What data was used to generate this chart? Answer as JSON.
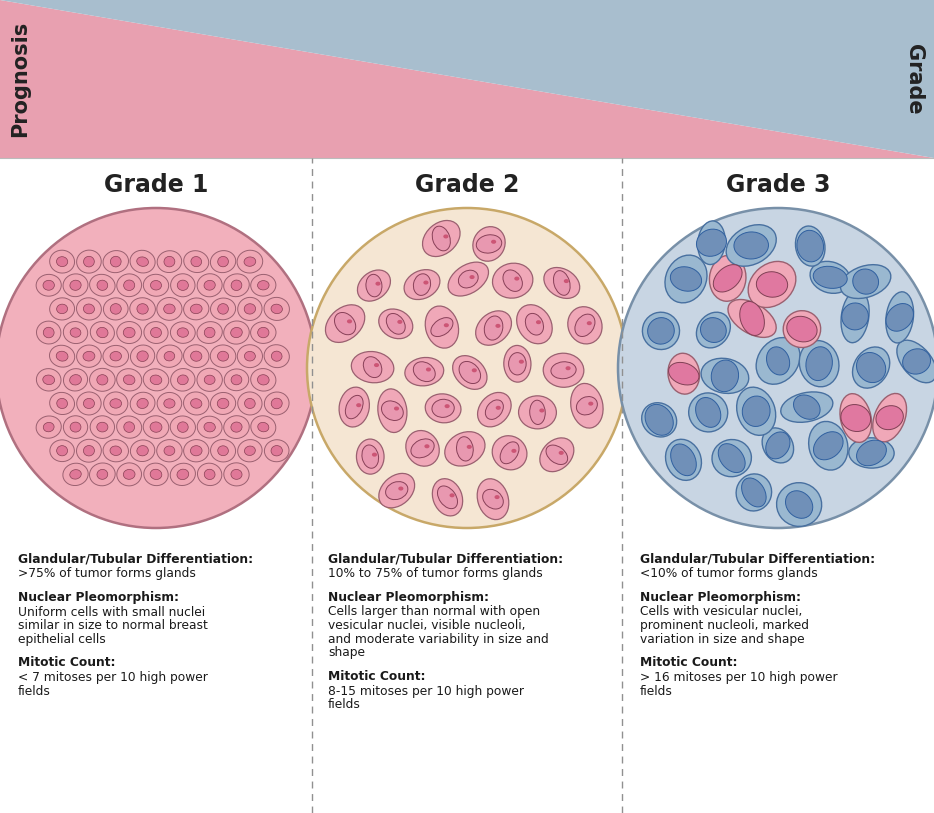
{
  "grade1_bg": "#f2b0bc",
  "grade2_bg": "#f5e6d3",
  "grade3_bg": "#c8d5e3",
  "prognosis_color": "#e8a0b0",
  "grade_color": "#a8bece",
  "divider_color": "#909090",
  "text_color": "#1a1a1a",
  "grade_labels": [
    "Grade 1",
    "Grade 2",
    "Grade 3"
  ],
  "grade1_text": [
    {
      "bold": "Glandular/Tubular Differentiation:",
      "normal": ">75% of tumor forms glands"
    },
    {
      "bold": "Nuclear Pleomorphism:",
      "normal": "Uniform cells with small nuclei\nsimilar in size to normal breast\nepithelial cells"
    },
    {
      "bold": "Mitotic Count:",
      "normal": "< 7 mitoses per 10 high power\nfields"
    }
  ],
  "grade2_text": [
    {
      "bold": "Glandular/Tubular Differentiation:",
      "normal": "10% to 75% of tumor forms glands"
    },
    {
      "bold": "Nuclear Pleomorphism:",
      "normal": "Cells larger than normal with open\nvesicular nuclei, visible nucleoli,\nand moderate variability in size and\nshape"
    },
    {
      "bold": "Mitotic Count:",
      "normal": "8-15 mitoses per 10 high power\nfields"
    }
  ],
  "grade3_text": [
    {
      "bold": "Glandular/Tubular Differentiation:",
      "normal": "<10% of tumor forms glands"
    },
    {
      "bold": "Nuclear Pleomorphism:",
      "normal": "Cells with vesicular nuclei,\nprominent nucleoli, marked\nvariation in size and shape"
    },
    {
      "bold": "Mitotic Count:",
      "normal": "> 16 mitoses per 10 high power\nfields"
    }
  ]
}
